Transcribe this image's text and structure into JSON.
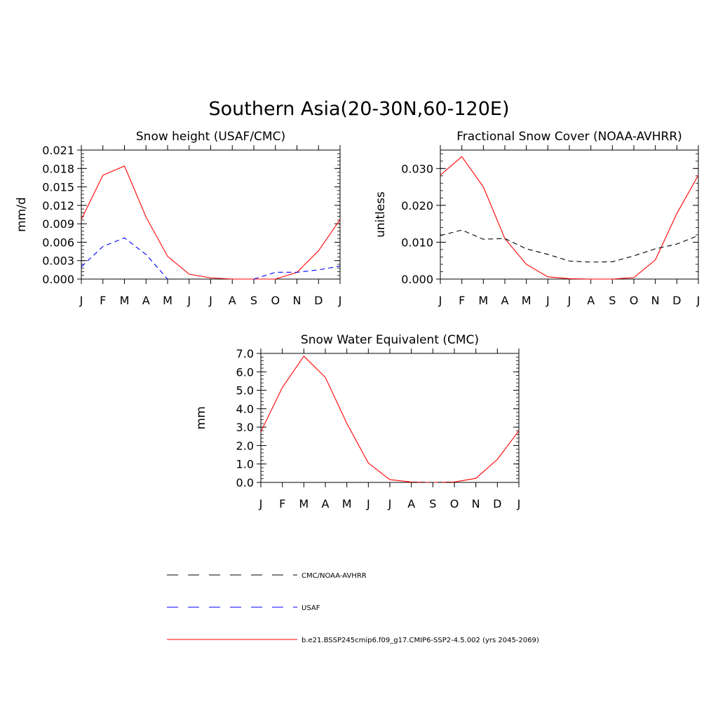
{
  "figure": {
    "title": "Southern Asia(20-30N,60-120E)"
  },
  "chart_data": [
    {
      "type": "line",
      "title": "Snow height (USAF/CMC)",
      "xlabel": "",
      "ylabel": "mm/d",
      "categories": [
        "J",
        "F",
        "M",
        "A",
        "M",
        "J",
        "J",
        "A",
        "S",
        "O",
        "N",
        "D",
        "J"
      ],
      "ylim": [
        0,
        0.021
      ],
      "yticks": [
        "0.000",
        "0.003",
        "0.006",
        "0.009",
        "0.012",
        "0.015",
        "0.018",
        "0.021"
      ],
      "series": [
        {
          "name": "b.e21.BSSP245cmip6.f09_g17.CMIP6-SSP2-4.5.002 (yrs 2045-2069)",
          "color": "#ff0000",
          "dash": "solid",
          "values": [
            0.0097,
            0.0169,
            0.0184,
            0.0101,
            0.0037,
            0.0008,
            0.0002,
            0.0,
            0.0,
            0.0,
            0.0011,
            0.0046,
            0.0097
          ]
        },
        {
          "name": "USAF",
          "color": "#0000ff",
          "dash": "dashed",
          "values": [
            0.002,
            0.0053,
            0.0067,
            0.004,
            0.0,
            null,
            null,
            null,
            0.0,
            0.0011,
            0.0011,
            0.0015,
            0.0021
          ]
        }
      ]
    },
    {
      "type": "line",
      "title": "Fractional Snow Cover (NOAA-AVHRR)",
      "xlabel": "",
      "ylabel": "unitless",
      "categories": [
        "J",
        "F",
        "M",
        "A",
        "M",
        "J",
        "J",
        "A",
        "S",
        "O",
        "N",
        "D",
        "J"
      ],
      "ylim": [
        0,
        0.035
      ],
      "yticks": [
        "0.000",
        "0.010",
        "0.020",
        "0.030"
      ],
      "yticks_values": [
        0,
        0.01,
        0.02,
        0.03
      ],
      "series": [
        {
          "name": "b.e21.BSSP245cmip6.f09_g17.CMIP6-SSP2-4.5.002 (yrs 2045-2069)",
          "color": "#ff0000",
          "dash": "solid",
          "values": [
            0.0282,
            0.0332,
            0.025,
            0.011,
            0.004,
            0.0006,
            0.0001,
            0.0,
            0.0,
            0.0004,
            0.0052,
            0.0178,
            0.0282
          ]
        },
        {
          "name": "CMC/NOAA-AVHRR",
          "color": "#000000",
          "dash": "dashed",
          "values": [
            0.0118,
            0.0133,
            0.0108,
            0.011,
            0.0082,
            0.0067,
            0.0049,
            0.0046,
            0.0047,
            0.0063,
            0.0082,
            0.0095,
            0.0118
          ]
        }
      ]
    },
    {
      "type": "line",
      "title": "Snow Water Equivalent (CMC)",
      "xlabel": "",
      "ylabel": "mm",
      "categories": [
        "J",
        "F",
        "M",
        "A",
        "M",
        "J",
        "J",
        "A",
        "S",
        "O",
        "N",
        "D",
        "J"
      ],
      "ylim": [
        0,
        7
      ],
      "yticks": [
        "0.0",
        "1.0",
        "2.0",
        "3.0",
        "4.0",
        "5.0",
        "6.0",
        "7.0"
      ],
      "series": [
        {
          "name": "b.e21.BSSP245cmip6.f09_g17.CMIP6-SSP2-4.5.002 (yrs 2045-2069)",
          "color": "#ff0000",
          "dash": "solid",
          "values": [
            2.75,
            5.15,
            6.85,
            5.7,
            3.2,
            1.05,
            0.15,
            0.02,
            0.0,
            0.02,
            0.22,
            1.25,
            2.8
          ]
        },
        {
          "name": "CMC/NOAA-AVHRR",
          "color": "#000000",
          "dash": "dashed",
          "values": [
            0.0,
            0.0,
            0.0,
            0.0,
            0.0,
            0.0,
            0.0,
            0.0,
            0.0,
            0.0,
            0.0,
            0.0,
            0.0
          ]
        }
      ]
    }
  ],
  "legend": [
    {
      "label": "CMC/NOAA-AVHRR",
      "color": "#000000",
      "dash": "dashed"
    },
    {
      "label": "USAF",
      "color": "#0000ff",
      "dash": "dashed"
    },
    {
      "label": "b.e21.BSSP245cmip6.f09_g17.CMIP6-SSP2-4.5.002 (yrs 2045-2069)",
      "color": "#ff0000",
      "dash": "solid"
    }
  ]
}
